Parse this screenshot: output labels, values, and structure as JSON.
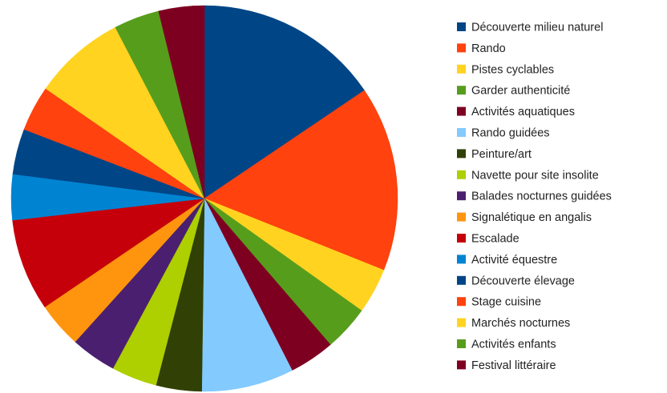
{
  "chart_data": {
    "type": "pie",
    "title": "",
    "legend_position": "right",
    "start_angle_deg": 0,
    "direction": "clockwise",
    "categories": [
      "Découverte milieu naturel",
      "Rando",
      "Pistes cyclables",
      "Garder authenticité",
      "Activités aquatiques",
      "Rando guidées",
      "Peinture/art",
      "Navette pour site insolite",
      "Balades nocturnes guidées",
      "Signalétique en angalis",
      "Escalade",
      "Activité équestre",
      "Découverte élevage",
      "Stage cuisine",
      "Marchés nocturnes",
      "Activités enfants",
      "Festival littéraire"
    ],
    "values": [
      17.5,
      17.5,
      4.3,
      4.3,
      4.3,
      8.7,
      4.3,
      4.3,
      4.3,
      4.3,
      8.7,
      4.3,
      4.3,
      4.3,
      8.7,
      4.3,
      4.3
    ],
    "colors": [
      "#004586",
      "#ff420e",
      "#ffd320",
      "#579d1c",
      "#7e0021",
      "#83caff",
      "#314004",
      "#aecf00",
      "#4b1f6f",
      "#ff950e",
      "#c5000b",
      "#0084d1",
      "#004586",
      "#ff420e",
      "#ffd320",
      "#579d1c",
      "#7e0021"
    ]
  }
}
